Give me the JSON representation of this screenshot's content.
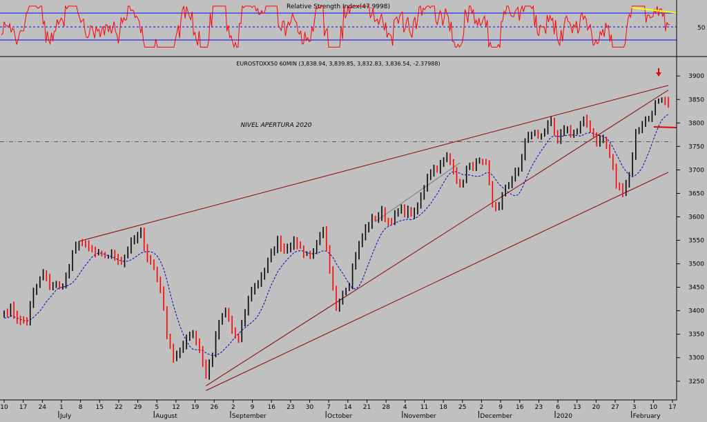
{
  "chart_data": [
    {
      "type": "line",
      "title": "Relative Strength Index(47.9998)",
      "y_tick_labels": [
        "50"
      ],
      "ylim": [
        0,
        100
      ],
      "reference_lines": {
        "upper": 70,
        "middle": 50,
        "lower": 30
      },
      "overbought_trendline": {
        "from": 90,
        "to": 79
      },
      "colors": {
        "rsi": "#ff0000",
        "bands": "#0000ff",
        "trendline": "#ffff00"
      }
    },
    {
      "type": "line",
      "title": "EUROSTOXX50 60MIN (3,838.94, 3,839.85, 3,832.83, 3,836.54, -2.37988)",
      "annotation": "NIVEL APERTURA 2020",
      "opening_level": 3760,
      "ylim": [
        3210,
        3915
      ],
      "y_ticks": [
        3250,
        3300,
        3350,
        3400,
        3450,
        3500,
        3550,
        3600,
        3650,
        3700,
        3750,
        3800,
        3850,
        3900
      ],
      "x_day_labels": [
        "10",
        "17",
        "24",
        "1",
        "8",
        "15",
        "22",
        "29",
        "5",
        "12",
        "19",
        "26",
        "2",
        "9",
        "16",
        "23",
        "30",
        "7",
        "14",
        "21",
        "28",
        "4",
        "11",
        "18",
        "25",
        "2",
        "9",
        "16",
        "23",
        "6",
        "13",
        "20",
        "27",
        "3",
        "10",
        "17"
      ],
      "x_month_labels": [
        "July",
        "August",
        "September",
        "October",
        "November",
        "December",
        "2020",
        "February"
      ],
      "keypoints": [
        [
          0,
          3395
        ],
        [
          2,
          3405
        ],
        [
          5,
          3375
        ],
        [
          7,
          3378
        ],
        [
          9,
          3440
        ],
        [
          12,
          3480
        ],
        [
          14,
          3455
        ],
        [
          17,
          3450
        ],
        [
          19,
          3470
        ],
        [
          21,
          3520
        ],
        [
          23,
          3548
        ],
        [
          25,
          3535
        ],
        [
          28,
          3522
        ],
        [
          30,
          3515
        ],
        [
          33,
          3520
        ],
        [
          36,
          3505
        ],
        [
          38,
          3530
        ],
        [
          40,
          3552
        ],
        [
          42,
          3565
        ],
        [
          44,
          3515
        ],
        [
          46,
          3490
        ],
        [
          48,
          3450
        ],
        [
          50,
          3350
        ],
        [
          52,
          3300
        ],
        [
          54,
          3310
        ],
        [
          56,
          3345
        ],
        [
          58,
          3352
        ],
        [
          60,
          3320
        ],
        [
          62,
          3260
        ],
        [
          64,
          3310
        ],
        [
          66,
          3375
        ],
        [
          68,
          3398
        ],
        [
          70,
          3360
        ],
        [
          72,
          3335
        ],
        [
          74,
          3400
        ],
        [
          76,
          3445
        ],
        [
          78,
          3462
        ],
        [
          80,
          3490
        ],
        [
          82,
          3520
        ],
        [
          84,
          3548
        ],
        [
          86,
          3532
        ],
        [
          88,
          3545
        ],
        [
          90,
          3542
        ],
        [
          92,
          3525
        ],
        [
          94,
          3518
        ],
        [
          96,
          3540
        ],
        [
          98,
          3570
        ],
        [
          100,
          3480
        ],
        [
          102,
          3410
        ],
        [
          104,
          3440
        ],
        [
          106,
          3462
        ],
        [
          108,
          3520
        ],
        [
          110,
          3560
        ],
        [
          112,
          3585
        ],
        [
          114,
          3598
        ],
        [
          116,
          3608
        ],
        [
          118,
          3590
        ],
        [
          120,
          3602
        ],
        [
          122,
          3615
        ],
        [
          124,
          3610
        ],
        [
          126,
          3605
        ],
        [
          128,
          3640
        ],
        [
          130,
          3690
        ],
        [
          132,
          3705
        ],
        [
          134,
          3710
        ],
        [
          136,
          3725
        ],
        [
          138,
          3705
        ],
        [
          140,
          3660
        ],
        [
          142,
          3700
        ],
        [
          144,
          3710
        ],
        [
          146,
          3715
        ],
        [
          148,
          3710
        ],
        [
          150,
          3625
        ],
        [
          152,
          3620
        ],
        [
          154,
          3665
        ],
        [
          156,
          3680
        ],
        [
          158,
          3700
        ],
        [
          160,
          3762
        ],
        [
          162,
          3778
        ],
        [
          164,
          3772
        ],
        [
          166,
          3784
        ],
        [
          168,
          3798
        ],
        [
          170,
          3760
        ],
        [
          172,
          3790
        ],
        [
          174,
          3780
        ],
        [
          176,
          3784
        ],
        [
          178,
          3802
        ],
        [
          180,
          3790
        ],
        [
          182,
          3760
        ],
        [
          184,
          3765
        ],
        [
          186,
          3730
        ],
        [
          188,
          3670
        ],
        [
          190,
          3655
        ],
        [
          192,
          3690
        ],
        [
          194,
          3780
        ],
        [
          196,
          3800
        ],
        [
          198,
          3812
        ],
        [
          200,
          3840
        ],
        [
          202,
          3845
        ],
        [
          204,
          3836
        ]
      ],
      "colors": {
        "price_up": "#000000",
        "price_down": "#ff0000",
        "moving_average": "#0000b4",
        "trendline": "#8b0000",
        "opening_level": "#555555",
        "marker": "#e00000"
      }
    }
  ]
}
